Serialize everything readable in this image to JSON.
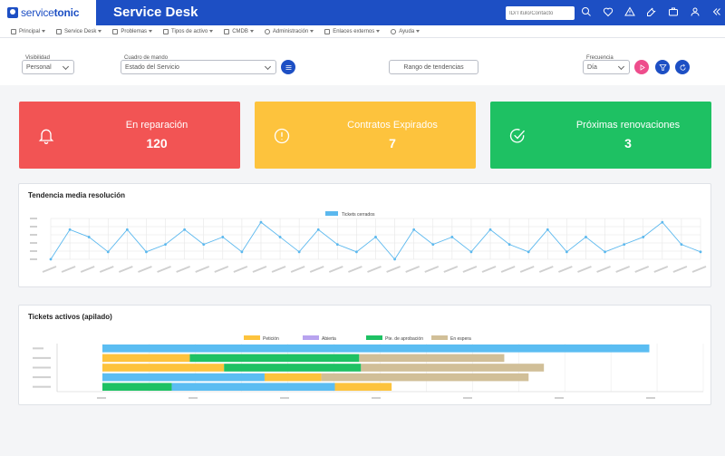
{
  "app": {
    "brand_prefix": "service",
    "brand_suffix": "tonic",
    "title": "Service Desk",
    "search_placeholder": "ID/Título/Contacto"
  },
  "top_icons": [
    "search-icon",
    "heart-icon",
    "warning-icon",
    "wrench-icon",
    "briefcase-icon",
    "user-icon",
    "double-chevron-left-icon"
  ],
  "menu": [
    {
      "label": "Principal",
      "icon": "home-icon"
    },
    {
      "label": "Service Desk",
      "icon": "desk-icon"
    },
    {
      "label": "Problemas",
      "icon": "bug-icon"
    },
    {
      "label": "Tipos de activo",
      "icon": "grid-icon"
    },
    {
      "label": "CMDB",
      "icon": "monitor-icon"
    },
    {
      "label": "Administración",
      "icon": "gear-icon"
    },
    {
      "label": "Enlaces externos",
      "icon": "external-link-icon"
    },
    {
      "label": "Ayuda",
      "icon": "help-icon"
    }
  ],
  "filters": {
    "visibility_label": "Visibilidad",
    "visibility_value": "Personal",
    "dashboard_label": "Cuadro de mando",
    "dashboard_value": "Estado del Servicio",
    "trend_range_label": "Rango de tendencias",
    "frequency_label": "Frecuencia",
    "frequency_value": "Día"
  },
  "cards": [
    {
      "title": "En reparación",
      "value": "120",
      "color": "#f25454",
      "icon": "bell-icon"
    },
    {
      "title": "Contratos Expirados",
      "value": "7",
      "color": "#fdc33d",
      "icon": "alert-circle-icon"
    },
    {
      "title": "Próximas renovaciones",
      "value": "3",
      "color": "#1ec163",
      "icon": "check-circle-icon"
    }
  ],
  "chart_data": [
    {
      "type": "line",
      "title": "Tendencia media resolución",
      "series": [
        {
          "name": "Tickets cerrados",
          "color": "#5bb8ee",
          "values": [
            0,
            8,
            6,
            2,
            8,
            2,
            4,
            8,
            4,
            6,
            2,
            10,
            6,
            2,
            8,
            4,
            2,
            6,
            0,
            8,
            4,
            6,
            2,
            8,
            4,
            2,
            8,
            2,
            6,
            2,
            4,
            6,
            10,
            4,
            2
          ]
        }
      ],
      "ylim": [
        0,
        11
      ]
    },
    {
      "type": "bar",
      "stacked": true,
      "orientation": "horizontal",
      "title": "Tickets activos (apilado)",
      "series": [
        {
          "name": "Petición",
          "color": "#fdc33d"
        },
        {
          "name": "Abierta",
          "color": "#b8a3ef"
        },
        {
          "name": "Pte. de aprobación",
          "color": "#1ec163"
        },
        {
          "name": "En espera",
          "color": "#d1bf98"
        }
      ],
      "other_color": "#5bbdf2",
      "rows": [
        [
          {
            "s": "other",
            "v": 607
          }
        ],
        [
          {
            "s": "Petición",
            "v": 97
          },
          {
            "s": "Pte. de aprobación",
            "v": 188
          },
          {
            "s": "En espera",
            "v": 161
          }
        ],
        [
          {
            "s": "Petición",
            "v": 135
          },
          {
            "s": "Pte. de aprobación",
            "v": 152
          },
          {
            "s": "En espera",
            "v": 203
          }
        ],
        [
          {
            "s": "other",
            "v": 180
          },
          {
            "s": "Petición",
            "v": 63
          },
          {
            "s": "En espera",
            "v": 230
          }
        ],
        [
          {
            "s": "Pte. de aprobación",
            "v": 77
          },
          {
            "s": "other",
            "v": 181
          },
          {
            "s": "Petición",
            "v": 63
          }
        ]
      ],
      "xlim": [
        0,
        700
      ]
    }
  ]
}
